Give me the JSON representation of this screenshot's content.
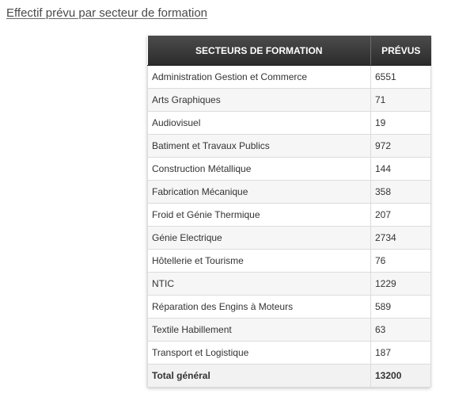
{
  "page": {
    "title": "Effectif prévu par secteur de formation"
  },
  "table": {
    "headers": [
      "SECTEURS DE FORMATION",
      "PRÉVUS"
    ],
    "rows": [
      {
        "sector": "Administration Gestion et Commerce",
        "value": "6551"
      },
      {
        "sector": "Arts Graphiques",
        "value": "71"
      },
      {
        "sector": "Audiovisuel",
        "value": "19"
      },
      {
        "sector": "Batiment et Travaux Publics",
        "value": "972"
      },
      {
        "sector": "Construction Métallique",
        "value": "144"
      },
      {
        "sector": "Fabrication Mécanique",
        "value": "358"
      },
      {
        "sector": "Froid et Génie Thermique",
        "value": "207"
      },
      {
        "sector": "Génie Electrique",
        "value": "2734"
      },
      {
        "sector": "Hôtellerie et Tourisme",
        "value": "76"
      },
      {
        "sector": "NTIC",
        "value": "1229"
      },
      {
        "sector": "Réparation des Engins à Moteurs",
        "value": "589"
      },
      {
        "sector": "Textile Habillement",
        "value": "63"
      },
      {
        "sector": "Transport et Logistique",
        "value": "187"
      }
    ],
    "total": {
      "label": "Total général",
      "value": "13200"
    }
  },
  "colors": {
    "header_bg": "#3a3a3a",
    "header_text": "#ffffff",
    "row_alt": "#f6f6f6",
    "border": "#dcdcdc"
  }
}
